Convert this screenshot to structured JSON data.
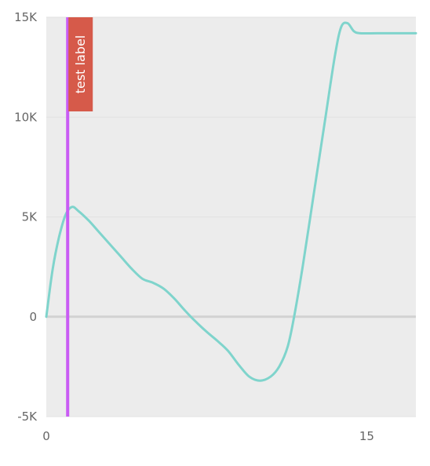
{
  "chart_data": {
    "type": "line",
    "title": "",
    "xlabel": "",
    "ylabel": "",
    "xlim": [
      0,
      17.3
    ],
    "ylim": [
      -5000,
      15000
    ],
    "grid": true,
    "x_ticks": [
      {
        "value": 0,
        "label": "0"
      },
      {
        "value": 15,
        "label": "15"
      }
    ],
    "y_ticks": [
      {
        "value": 15000,
        "label": "15K"
      },
      {
        "value": 10000,
        "label": "10K"
      },
      {
        "value": 5000,
        "label": "5K"
      },
      {
        "value": 0,
        "label": "0"
      },
      {
        "value": -5000,
        "label": "-5K"
      }
    ],
    "series": [
      {
        "color": "#7fd4cc",
        "points": [
          [
            0.0,
            0
          ],
          [
            0.3,
            2400
          ],
          [
            0.6,
            4000
          ],
          [
            0.9,
            5100
          ],
          [
            1.2,
            5500
          ],
          [
            1.5,
            5300
          ],
          [
            2.0,
            4800
          ],
          [
            2.5,
            4200
          ],
          [
            3.0,
            3600
          ],
          [
            3.5,
            3000
          ],
          [
            4.0,
            2400
          ],
          [
            4.5,
            1900
          ],
          [
            5.0,
            1700
          ],
          [
            5.5,
            1400
          ],
          [
            6.0,
            900
          ],
          [
            6.5,
            300
          ],
          [
            7.0,
            -250
          ],
          [
            7.5,
            -750
          ],
          [
            8.0,
            -1200
          ],
          [
            8.5,
            -1700
          ],
          [
            9.0,
            -2400
          ],
          [
            9.5,
            -3000
          ],
          [
            10.0,
            -3200
          ],
          [
            10.5,
            -3000
          ],
          [
            10.9,
            -2500
          ],
          [
            11.3,
            -1500
          ],
          [
            11.6,
            0
          ],
          [
            12.0,
            2500
          ],
          [
            12.5,
            6000
          ],
          [
            13.0,
            9500
          ],
          [
            13.5,
            13000
          ],
          [
            13.8,
            14500
          ],
          [
            14.1,
            14700
          ],
          [
            14.4,
            14300
          ],
          [
            14.7,
            14200
          ],
          [
            15.5,
            14200
          ],
          [
            16.5,
            14200
          ],
          [
            17.3,
            14200
          ]
        ]
      }
    ],
    "markers": [
      {
        "x": 1.0,
        "label": "test label",
        "line_color": "#c95cf4",
        "label_bg": "#d65a4a"
      }
    ]
  }
}
